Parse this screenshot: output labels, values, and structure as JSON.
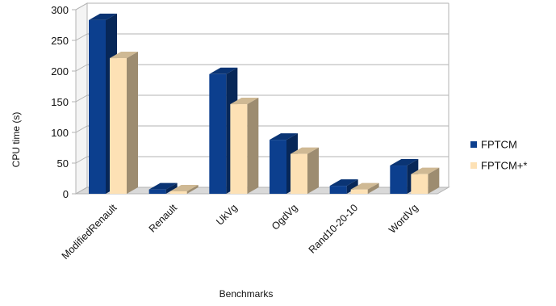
{
  "chart_data": {
    "type": "bar",
    "subtype": "3d-clustered-column",
    "xlabel": "Benchmarks",
    "ylabel": "CPU time (s)",
    "ylim": [
      0,
      300
    ],
    "yticks": [
      0,
      50,
      100,
      150,
      200,
      250,
      300
    ],
    "grid": true,
    "legend_position": "right",
    "categories": [
      "ModifiedRenault",
      "Renault",
      "UkVg",
      "OgdVg",
      "Rand10-20-10",
      "WordVg"
    ],
    "series": [
      {
        "name": "FPTCM",
        "color": "#0c3f8e",
        "values": [
          283,
          7,
          195,
          88,
          13,
          46
        ]
      },
      {
        "name": "FPTCM+*",
        "color": "#fde1b5",
        "values": [
          221,
          4,
          146,
          65,
          7,
          32
        ]
      }
    ]
  }
}
